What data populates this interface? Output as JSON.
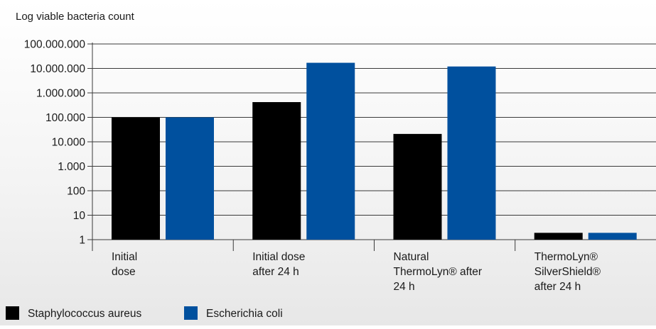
{
  "chart_data": {
    "type": "bar",
    "ylabel": "Log viable bacteria count",
    "yscale": "log",
    "ylim": [
      1,
      100000000
    ],
    "yticks": [
      1,
      10,
      100,
      1000,
      10000,
      100000,
      1000000,
      10000000,
      100000000
    ],
    "ytick_labels": [
      "1",
      "10",
      "100",
      "1.000",
      "10.000",
      "100.000",
      "1.000.000",
      "10.000.000",
      "100.000.000"
    ],
    "grid": true,
    "legend_position": "bottom-left",
    "categories": [
      [
        "Initial",
        "dose"
      ],
      [
        "Initial dose",
        "after 24 h"
      ],
      [
        "Natural",
        "ThermoLyn® after",
        "24 h"
      ],
      [
        "ThermoLyn®",
        "SilverShield®",
        "after 24 h"
      ]
    ],
    "series": [
      {
        "name": "Staphylococcus aureus",
        "color": "#000000",
        "values": [
          100000,
          420000,
          21000,
          1.9
        ]
      },
      {
        "name": "Escherichia coli",
        "color": "#00509e",
        "values": [
          100000,
          17000000,
          12000000,
          1.9
        ]
      }
    ]
  }
}
